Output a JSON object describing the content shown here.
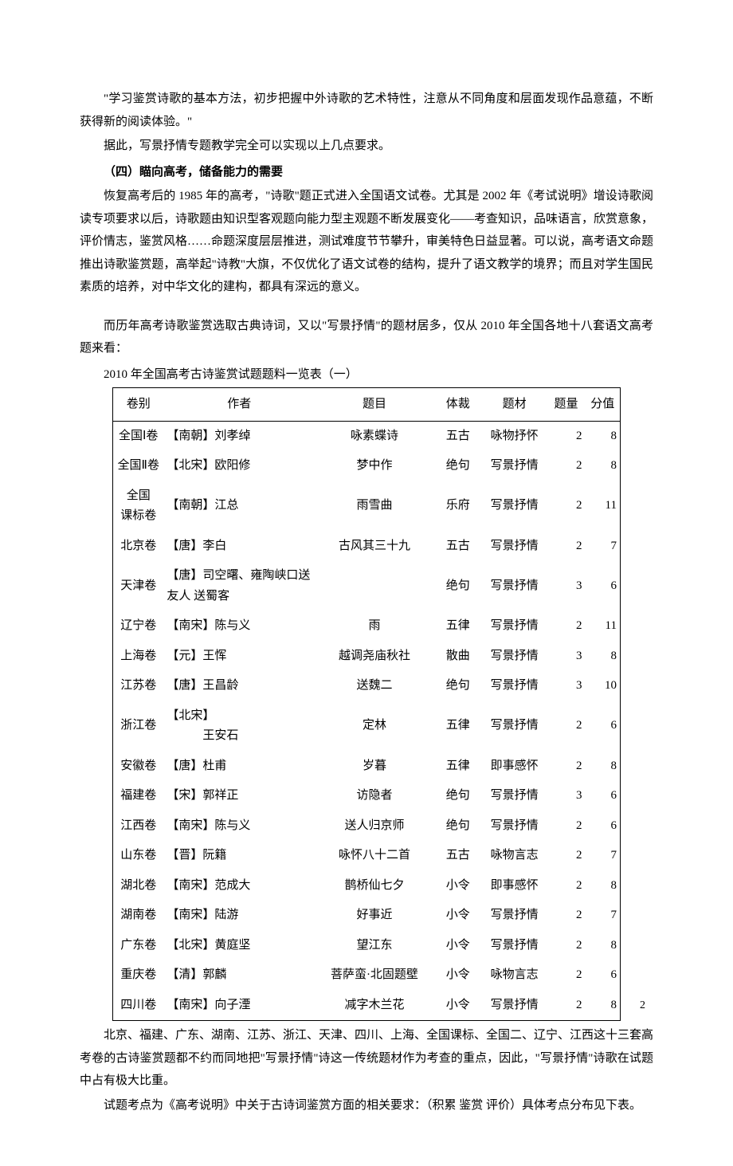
{
  "paragraphs": {
    "p1": "\"学习鉴赏诗歌的基本方法，初步把握中外诗歌的艺术特性，注意从不同角度和层面发现作品意蕴，不断获得新的阅读体验。\"",
    "p2": "据此，写景抒情专题教学完全可以实现以上几点要求。",
    "heading1": "（四）瞄向高考，储备能力的需要",
    "p3": "恢复高考后的 1985 年的高考，\"诗歌\"题正式进入全国语文试卷。尤其是 2002 年《考试说明》增设诗歌阅读专项要求以后，诗歌题由知识型客观题向能力型主观题不断发展变化——考查知识，品味语言，欣赏意象，评价情志，鉴赏风格……命题深度层层推进，测试难度节节攀升，审美特色日益显著。可以说，高考语文命题推出诗歌鉴赏题，高举起\"诗教\"大旗，不仅优化了语文试卷的结构，提升了语文教学的境界；而且对学生国民素质的培养，对中华文化的建构，都具有深远的意义。",
    "p4": "而历年高考诗歌鉴赏选取古典诗词，又以\"写景抒情\"的题材居多，仅从 2010 年全国各地十八套语文高考题来看：",
    "caption": "2010 年全国高考古诗鉴赏试题题料一览表（一）",
    "p5": "北京、福建、广东、湖南、江苏、浙江、天津、四川、上海、全国课标、全国二、辽宁、江西这十三套高考卷的古诗鉴赏题都不约而同地把\"写景抒情\"诗这一传统题材作为考查的重点，因此，\"写景抒情\"诗歌在试题中占有极大比重。",
    "p6": "试题考点为《高考说明》中关于古诗词鉴赏方面的相关要求：（积累 鉴赏 评价）具体考点分布见下表。"
  },
  "tableHeaders": {
    "paper": "卷别",
    "author": "作者",
    "title": "题目",
    "form": "体裁",
    "material": "题材",
    "count": "题量",
    "score": "分值"
  },
  "tableRows": [
    {
      "paper": "全国Ⅰ卷",
      "author": "【南朝】刘孝绰",
      "title": "咏素蝶诗",
      "form": "五古",
      "material": "咏物抒怀",
      "count": "2",
      "score": "8"
    },
    {
      "paper": "全国Ⅱ卷",
      "author": "【北宋】欧阳修",
      "title": "梦中作",
      "form": "绝句",
      "material": "写景抒情",
      "count": "2",
      "score": "8"
    },
    {
      "paper": "全国\n课标卷",
      "author": "【南朝】江总",
      "title": "雨雪曲",
      "form": "乐府",
      "material": "写景抒情",
      "count": "2",
      "score": "11"
    },
    {
      "paper": "北京卷",
      "author": "【唐】李白",
      "title": "古风其三十九",
      "form": "五古",
      "material": "写景抒情",
      "count": "2",
      "score": "7"
    },
    {
      "paper": "天津卷",
      "author": "【唐】司空曙、雍陶峡口送友人 送蜀客",
      "title": "",
      "form": "绝句",
      "material": "写景抒情",
      "count": "3",
      "score": "6"
    },
    {
      "paper": "辽宁卷",
      "author": "【南宋】陈与义",
      "title": "雨",
      "form": "五律",
      "material": "写景抒情",
      "count": "2",
      "score": "11"
    },
    {
      "paper": "上海卷",
      "author": "【元】王恽",
      "title": "越调尧庙秋社",
      "form": "散曲",
      "material": "写景抒情",
      "count": "3",
      "score": "8"
    },
    {
      "paper": "江苏卷",
      "author": "【唐】王昌龄",
      "title": "送魏二",
      "form": "绝句",
      "material": "写景抒情",
      "count": "3",
      "score": "10"
    },
    {
      "paper": "浙江卷",
      "author": "【北宋】\n　　　王安石",
      "title": "定林",
      "form": "五律",
      "material": "写景抒情",
      "count": "2",
      "score": "6"
    },
    {
      "paper": "安徽卷",
      "author": "【唐】杜甫",
      "title": "岁暮",
      "form": "五律",
      "material": "即事感怀",
      "count": "2",
      "score": "8"
    },
    {
      "paper": "福建卷",
      "author": "【宋】郭祥正",
      "title": "访隐者",
      "form": "绝句",
      "material": "写景抒情",
      "count": "3",
      "score": "6"
    },
    {
      "paper": "江西卷",
      "author": "【南宋】陈与义",
      "title": "送人归京师",
      "form": "绝句",
      "material": "写景抒情",
      "count": "2",
      "score": "6"
    },
    {
      "paper": "山东卷",
      "author": "【晋】阮籍",
      "title": "咏怀八十二首",
      "form": "五古",
      "material": "咏物言志",
      "count": "2",
      "score": "7"
    },
    {
      "paper": "湖北卷",
      "author": "【南宋】范成大",
      "title": "鹊桥仙七夕",
      "form": "小令",
      "material": "即事感怀",
      "count": "2",
      "score": "8"
    },
    {
      "paper": "湖南卷",
      "author": "【南宋】陆游",
      "title": "好事近",
      "form": "小令",
      "material": "写景抒情",
      "count": "2",
      "score": "7"
    },
    {
      "paper": "广东卷",
      "author": "【北宋】黄庭坚",
      "title": "望江东",
      "form": "小令",
      "material": "写景抒情",
      "count": "2",
      "score": "8"
    },
    {
      "paper": "重庆卷",
      "author": "【清】郭麟",
      "title": "菩萨蛮·北固题壁",
      "form": "小令",
      "material": "咏物言志",
      "count": "2",
      "score": "6"
    },
    {
      "paper": "四川卷",
      "author": "【南宋】向子湮",
      "title": "减字木兰花",
      "form": "小令",
      "material": "写景抒情",
      "count": "2",
      "score": "8"
    }
  ],
  "pageNumber": "2"
}
